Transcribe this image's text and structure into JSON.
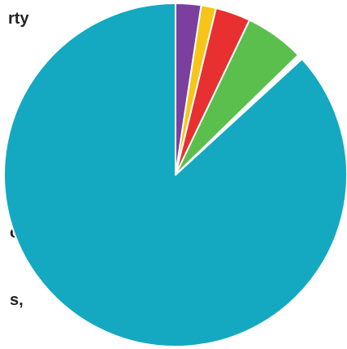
{
  "labels_fragments": [
    "rty",
    "o",
    "s,"
  ],
  "chart_data": {
    "type": "pie",
    "title": "",
    "start_angle_deg": 0,
    "direction": "clockwise",
    "slices": [
      {
        "value": 2.4,
        "color": "#7b3f9e"
      },
      {
        "value": 1.4,
        "color": "#f5c518"
      },
      {
        "value": 3.3,
        "color": "#e83030"
      },
      {
        "value": 5.6,
        "color": "#5bbf4e"
      },
      {
        "value": 0.5,
        "color": "#ffffff"
      },
      {
        "value": 86.8,
        "color": "#14a9c1"
      }
    ]
  }
}
